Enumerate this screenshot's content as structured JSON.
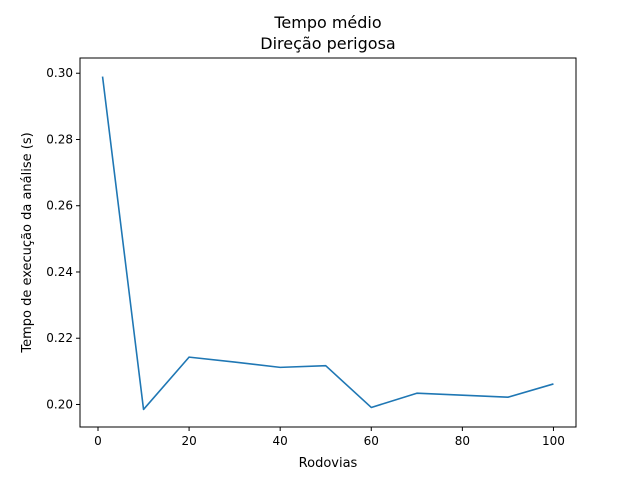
{
  "chart_data": {
    "type": "line",
    "title": "Tempo médio",
    "subtitle": "Direção perigosa",
    "xlabel": "Rodovias",
    "ylabel": "Tempo de execução da análise (s)",
    "xlim": [
      -3.95,
      104.95
    ],
    "ylim": [
      0.1932,
      0.3046
    ],
    "xticks": [
      0,
      20,
      40,
      60,
      80,
      100
    ],
    "yticks": [
      0.2,
      0.22,
      0.24,
      0.26,
      0.28,
      0.3
    ],
    "xtick_labels": [
      "0",
      "20",
      "40",
      "60",
      "80",
      "100"
    ],
    "ytick_labels": [
      "0.20",
      "0.22",
      "0.24",
      "0.26",
      "0.28",
      "0.30"
    ],
    "grid": false,
    "series": [
      {
        "color": "#1f77b4",
        "x": [
          1,
          10,
          20,
          30,
          40,
          50,
          60,
          70,
          80,
          90,
          100
        ],
        "y": [
          0.299,
          0.1985,
          0.2143,
          0.2128,
          0.2112,
          0.2117,
          0.1991,
          0.2034,
          0.2028,
          0.2022,
          0.2062
        ]
      }
    ]
  }
}
